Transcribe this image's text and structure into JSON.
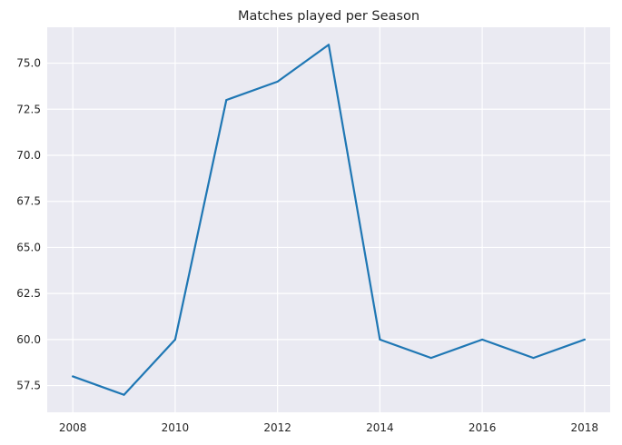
{
  "chart_data": {
    "type": "line",
    "title": "Matches played per Season",
    "xlabel": "",
    "ylabel": "",
    "x": [
      2008,
      2009,
      2010,
      2011,
      2012,
      2013,
      2014,
      2015,
      2016,
      2017,
      2018
    ],
    "series": [
      {
        "values": [
          58,
          57,
          60,
          73,
          74,
          76,
          60,
          59,
          60,
          59,
          60
        ]
      }
    ],
    "xlim": [
      2007.5,
      2018.5
    ],
    "ylim": [
      56.05,
      76.95
    ],
    "xticks": [
      2008,
      2010,
      2012,
      2014,
      2016,
      2018
    ],
    "xtick_labels": [
      "2008",
      "2010",
      "2012",
      "2014",
      "2016",
      "2018"
    ],
    "yticks": [
      57.5,
      60.0,
      62.5,
      65.0,
      67.5,
      70.0,
      72.5,
      75.0
    ],
    "ytick_labels": [
      "57.5",
      "60.0",
      "62.5",
      "65.0",
      "67.5",
      "70.0",
      "72.5",
      "75.0"
    ],
    "grid": true,
    "background": "#eaeaf2",
    "line_color": "#1f77b4"
  }
}
